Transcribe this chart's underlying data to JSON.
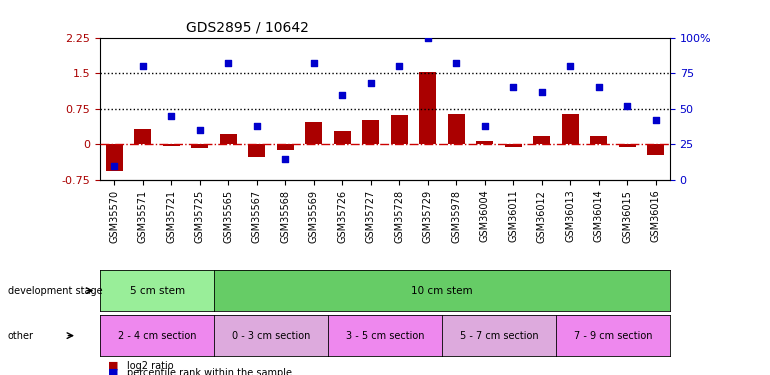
{
  "title": "GDS2895 / 10642",
  "samples": [
    "GSM35570",
    "GSM35571",
    "GSM35721",
    "GSM35725",
    "GSM35565",
    "GSM35567",
    "GSM35568",
    "GSM35569",
    "GSM35726",
    "GSM35727",
    "GSM35728",
    "GSM35729",
    "GSM35978",
    "GSM36004",
    "GSM36011",
    "GSM36012",
    "GSM36013",
    "GSM36014",
    "GSM36015",
    "GSM36016"
  ],
  "log2_ratio": [
    -0.55,
    0.32,
    -0.04,
    -0.08,
    0.22,
    -0.27,
    -0.12,
    0.48,
    0.28,
    0.52,
    0.62,
    1.52,
    0.65,
    0.08,
    -0.05,
    0.18,
    0.65,
    0.18,
    -0.05,
    -0.22
  ],
  "percentile": [
    10,
    80,
    45,
    35,
    82,
    38,
    15,
    82,
    60,
    68,
    80,
    100,
    82,
    38,
    65,
    62,
    80,
    65,
    52,
    42
  ],
  "ylim_left": [
    -0.75,
    2.25
  ],
  "ylim_right": [
    0,
    100
  ],
  "hlines": [
    0.75,
    1.5
  ],
  "zero_line": 0.0,
  "bar_color": "#aa0000",
  "dot_color": "#0000cc",
  "zero_line_color": "#cc0000",
  "dev_stage_groups": [
    {
      "label": "5 cm stem",
      "start": 0,
      "end": 4,
      "color": "#99ee99"
    },
    {
      "label": "10 cm stem",
      "start": 4,
      "end": 20,
      "color": "#66cc66"
    }
  ],
  "other_groups": [
    {
      "label": "2 - 4 cm section",
      "start": 0,
      "end": 4,
      "color": "#ee88ee"
    },
    {
      "label": "0 - 3 cm section",
      "start": 4,
      "end": 8,
      "color": "#ddaadd"
    },
    {
      "label": "3 - 5 cm section",
      "start": 8,
      "end": 12,
      "color": "#ee88ee"
    },
    {
      "label": "5 - 7 cm section",
      "start": 12,
      "end": 16,
      "color": "#ddaadd"
    },
    {
      "label": "7 - 9 cm section",
      "start": 16,
      "end": 20,
      "color": "#ee88ee"
    }
  ],
  "legend_items": [
    {
      "label": "log2 ratio",
      "color": "#aa0000"
    },
    {
      "label": "percentile rank within the sample",
      "color": "#0000cc"
    }
  ],
  "background_color": "#ffffff",
  "plot_bg": "#ffffff",
  "tick_label_color_left": "#aa0000",
  "tick_label_color_right": "#0000cc",
  "right_axis_label": "%",
  "bar_width": 0.6
}
